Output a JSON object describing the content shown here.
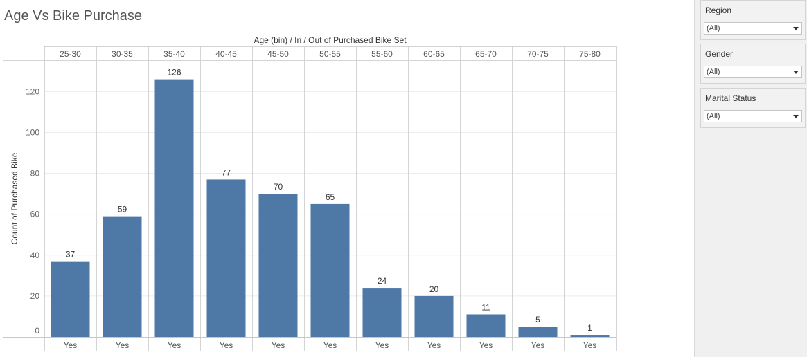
{
  "page": {
    "title": "Age Vs Bike Purchase"
  },
  "chart_data": {
    "type": "bar",
    "title": "Age Vs Bike Purchase",
    "column_header": "Age (bin)  /  In / Out of Purchased Bike Set",
    "categories": [
      "25-30",
      "30-35",
      "35-40",
      "40-45",
      "45-50",
      "50-55",
      "55-60",
      "60-65",
      "65-70",
      "70-75",
      "75-80"
    ],
    "x_sub_labels": [
      "Yes",
      "Yes",
      "Yes",
      "Yes",
      "Yes",
      "Yes",
      "Yes",
      "Yes",
      "Yes",
      "Yes",
      "Yes"
    ],
    "values": [
      37,
      59,
      126,
      77,
      70,
      65,
      24,
      20,
      11,
      5,
      1
    ],
    "ylabel": "Count of Purchased Bike",
    "yticks": [
      0,
      20,
      40,
      60,
      80,
      100,
      120
    ],
    "ylim": [
      0,
      135
    ],
    "bar_color": "#4e79a7",
    "grid": true
  },
  "filters": [
    {
      "label": "Region",
      "value": "(All)"
    },
    {
      "label": "Gender",
      "value": "(All)"
    },
    {
      "label": "Marital Status",
      "value": "(All)"
    }
  ]
}
